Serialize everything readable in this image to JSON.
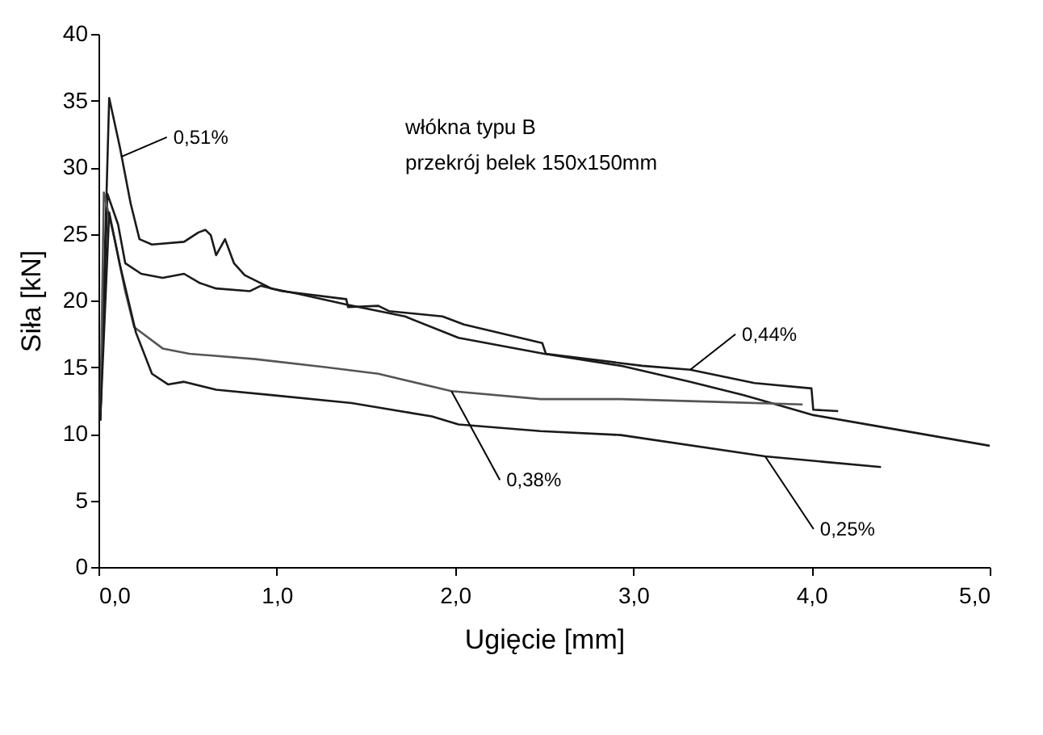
{
  "chart_data": {
    "type": "line",
    "xlabel": "Ugięcie [mm]",
    "ylabel": "Siła [kN]",
    "xlim": [
      0,
      5
    ],
    "xticks": [
      {
        "value": 0,
        "label": "0,0"
      },
      {
        "value": 1,
        "label": "1,0"
      },
      {
        "value": 2,
        "label": "2,0"
      },
      {
        "value": 3,
        "label": "3,0"
      },
      {
        "value": 4,
        "label": "4,0"
      },
      {
        "value": 5,
        "label": "5,0"
      }
    ],
    "ylim": [
      0,
      40
    ],
    "yticks": [
      0,
      5,
      10,
      15,
      20,
      25,
      30,
      35,
      40
    ],
    "grid": false,
    "line_style": "solid",
    "series": [
      {
        "color": "#1a1a1a",
        "x": [
          0.01,
          0.06,
          0.12,
          0.18,
          0.23,
          0.3,
          0.48,
          0.56,
          0.6,
          0.63,
          0.66,
          0.71,
          0.76,
          0.82,
          0.97,
          1.12,
          1.39,
          1.72,
          2.02,
          2.5,
          2.93,
          3.32,
          3.62,
          4.01,
          4.44,
          5.0
        ],
        "values": [
          11,
          35.2,
          31.5,
          27.3,
          24.6,
          24.2,
          24.4,
          25.1,
          25.3,
          24.9,
          23.4,
          24.6,
          22.8,
          21.9,
          20.9,
          20.5,
          19.7,
          18.8,
          17.2,
          16.0,
          15.1,
          13.9,
          12.9,
          11.4,
          10.4,
          9.1
        ]
      },
      {
        "color": "#1a1a1a",
        "x": [
          0.01,
          0.05,
          0.11,
          0.15,
          0.24,
          0.36,
          0.48,
          0.57,
          0.66,
          0.85,
          0.91,
          1.03,
          1.39,
          1.4,
          1.57,
          1.63,
          1.93,
          2.05,
          2.49,
          2.51,
          3.05,
          3.32,
          3.68,
          4.0,
          4.01,
          4.15
        ],
        "values": [
          11,
          28.0,
          25.7,
          22.8,
          22.0,
          21.7,
          22.0,
          21.3,
          20.9,
          20.7,
          21.1,
          20.7,
          20.1,
          19.5,
          19.6,
          19.2,
          18.8,
          18.2,
          16.8,
          16.0,
          15.1,
          14.8,
          13.8,
          13.4,
          11.8,
          11.7
        ]
      },
      {
        "color": "#555555",
        "x": [
          0.01,
          0.03,
          0.09,
          0.15,
          0.2,
          0.36,
          0.51,
          0.88,
          1.27,
          1.57,
          1.98,
          2.48,
          2.93,
          3.44,
          3.95
        ],
        "values": [
          11,
          28.1,
          24.6,
          20.7,
          18.0,
          16.4,
          16.0,
          15.6,
          15.0,
          14.5,
          13.2,
          12.6,
          12.6,
          12.4,
          12.2
        ]
      },
      {
        "color": "#1a1a1a",
        "x": [
          0.01,
          0.06,
          0.12,
          0.21,
          0.3,
          0.39,
          0.48,
          0.66,
          0.97,
          1.42,
          1.87,
          2.02,
          2.48,
          2.93,
          3.74,
          4.39
        ],
        "values": [
          11,
          26.6,
          22.7,
          17.6,
          14.5,
          13.7,
          13.9,
          13.3,
          12.9,
          12.3,
          11.3,
          10.7,
          10.2,
          9.9,
          8.3,
          7.5
        ]
      }
    ],
    "annotations": [
      {
        "text": "0,51%",
        "x": 0.13,
        "y": 30.8
      },
      {
        "text": "0,44%",
        "x": 3.32,
        "y": 14.8
      },
      {
        "text": "0,38%",
        "x": 1.98,
        "y": 13.2
      },
      {
        "text": "0,25%",
        "x": 3.74,
        "y": 8.3
      },
      "włókna typu B",
      "przekrój belek 150x150mm"
    ]
  }
}
